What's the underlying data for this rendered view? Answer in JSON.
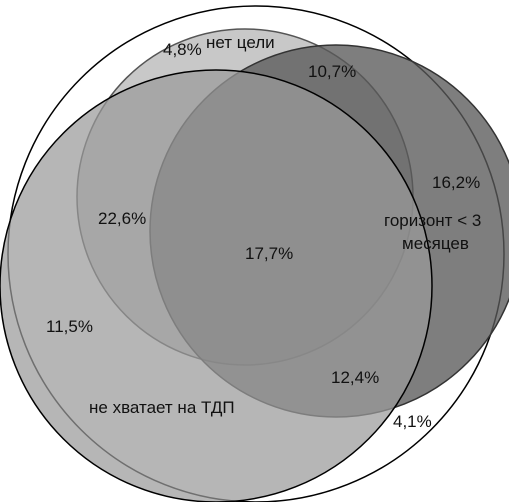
{
  "diagram": {
    "sets": {
      "no_goal": "нет цели",
      "horizon_line1": "горизонт < 3",
      "horizon_line2": "месяцев",
      "not_enough_tdp": "не хватает на ТДП"
    },
    "regions": {
      "no_goal_only": "4,8%",
      "no_goal_and_horizon": "10,7%",
      "horizon_only": "16,2%",
      "no_goal_and_tdp": "22,6%",
      "all_three": "17,7%",
      "tdp_only": "11,5%",
      "horizon_and_tdp": "12,4%",
      "none": "4,1%"
    },
    "colors": {
      "outline": "#000000",
      "universe": "#ffffff",
      "no_goal_fill": "#c8c8c8",
      "horizon_fill": "#6e6e6e",
      "tdp_fill": "#8a8a8a"
    }
  }
}
